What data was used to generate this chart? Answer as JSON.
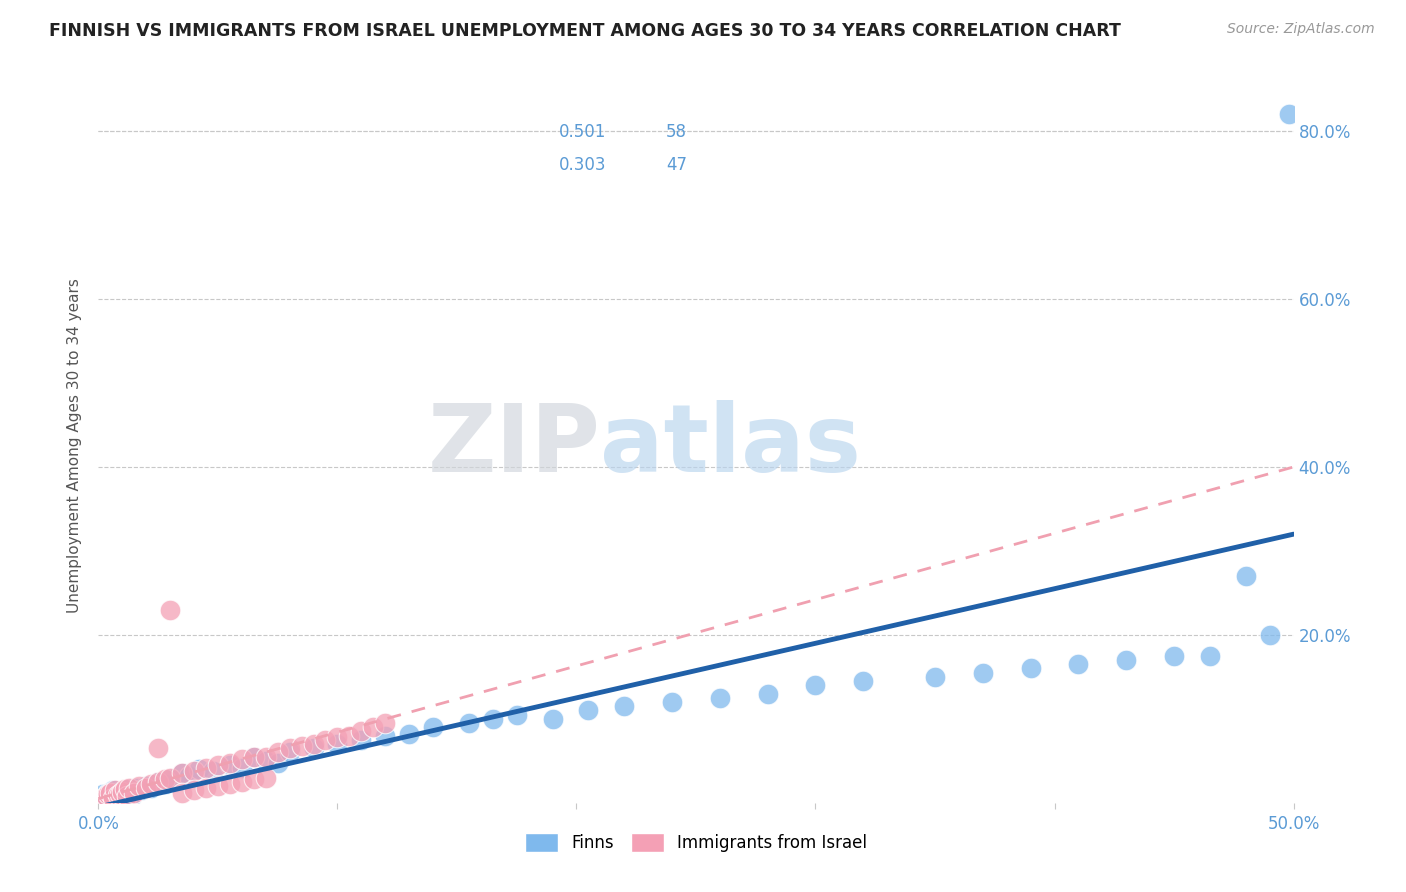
{
  "title": "FINNISH VS IMMIGRANTS FROM ISRAEL UNEMPLOYMENT AMONG AGES 30 TO 34 YEARS CORRELATION CHART",
  "source_text": "Source: ZipAtlas.com",
  "ylabel": "Unemployment Among Ages 30 to 34 years",
  "xlim": [
    0.0,
    0.5
  ],
  "ylim": [
    0.0,
    0.85
  ],
  "xtick_labels": [
    "0.0%",
    "",
    "",
    "",
    "",
    "50.0%"
  ],
  "xtick_vals": [
    0.0,
    0.1,
    0.2,
    0.3,
    0.4,
    0.5
  ],
  "ytick_labels": [
    "20.0%",
    "40.0%",
    "60.0%",
    "80.0%"
  ],
  "ytick_vals": [
    0.2,
    0.4,
    0.6,
    0.8
  ],
  "legend_r1": "0.501",
  "legend_n1": "58",
  "legend_r2": "0.303",
  "legend_n2": "47",
  "blue_color": "#7fb9ed",
  "pink_color": "#f4a0b5",
  "trend_blue": "#2060a8",
  "trend_pink": "#f0a0b0",
  "label_color": "#5b9bd5",
  "watermark_zip": "ZIP",
  "watermark_atlas": "atlas",
  "grid_color": "#c8c8c8",
  "bg_color": "#ffffff",
  "title_color": "#222222",
  "axis_label_color": "#5b9bd5",
  "finns_x": [
    0.002,
    0.003,
    0.004,
    0.005,
    0.006,
    0.007,
    0.008,
    0.009,
    0.01,
    0.011,
    0.012,
    0.013,
    0.014,
    0.015,
    0.016,
    0.018,
    0.02,
    0.022,
    0.025,
    0.028,
    0.03,
    0.035,
    0.038,
    0.042,
    0.048,
    0.055,
    0.06,
    0.065,
    0.07,
    0.075,
    0.08,
    0.09,
    0.1,
    0.11,
    0.12,
    0.13,
    0.14,
    0.155,
    0.165,
    0.175,
    0.19,
    0.205,
    0.22,
    0.24,
    0.26,
    0.28,
    0.3,
    0.32,
    0.35,
    0.37,
    0.39,
    0.41,
    0.43,
    0.45,
    0.465,
    0.48,
    0.49,
    0.498
  ],
  "finns_y": [
    0.01,
    0.008,
    0.012,
    0.006,
    0.015,
    0.009,
    0.011,
    0.013,
    0.007,
    0.014,
    0.01,
    0.016,
    0.008,
    0.012,
    0.018,
    0.015,
    0.02,
    0.018,
    0.025,
    0.022,
    0.028,
    0.035,
    0.032,
    0.04,
    0.038,
    0.045,
    0.042,
    0.055,
    0.05,
    0.048,
    0.06,
    0.065,
    0.07,
    0.075,
    0.08,
    0.082,
    0.09,
    0.095,
    0.1,
    0.105,
    0.1,
    0.11,
    0.115,
    0.12,
    0.125,
    0.13,
    0.14,
    0.145,
    0.15,
    0.155,
    0.16,
    0.165,
    0.17,
    0.175,
    0.175,
    0.27,
    0.2,
    0.82
  ],
  "israel_x": [
    0.002,
    0.003,
    0.004,
    0.005,
    0.006,
    0.007,
    0.008,
    0.009,
    0.01,
    0.011,
    0.012,
    0.013,
    0.015,
    0.017,
    0.02,
    0.022,
    0.025,
    0.028,
    0.03,
    0.035,
    0.04,
    0.045,
    0.05,
    0.055,
    0.06,
    0.065,
    0.07,
    0.075,
    0.08,
    0.085,
    0.09,
    0.095,
    0.1,
    0.105,
    0.11,
    0.115,
    0.12,
    0.025,
    0.03,
    0.035,
    0.04,
    0.045,
    0.05,
    0.055,
    0.06,
    0.065,
    0.07
  ],
  "israel_y": [
    0.005,
    0.008,
    0.01,
    0.012,
    0.006,
    0.015,
    0.009,
    0.011,
    0.013,
    0.016,
    0.008,
    0.018,
    0.012,
    0.02,
    0.018,
    0.022,
    0.025,
    0.028,
    0.03,
    0.035,
    0.038,
    0.042,
    0.045,
    0.048,
    0.052,
    0.055,
    0.055,
    0.06,
    0.065,
    0.068,
    0.07,
    0.075,
    0.078,
    0.08,
    0.085,
    0.09,
    0.095,
    0.065,
    0.23,
    0.012,
    0.015,
    0.018,
    0.02,
    0.022,
    0.025,
    0.028,
    0.03
  ],
  "finns_trend_x0": 0.0,
  "finns_trend_y0": -0.005,
  "finns_trend_x1": 0.5,
  "finns_trend_y1": 0.32,
  "israel_trend_x0": 0.0,
  "israel_trend_y0": 0.005,
  "israel_trend_x1": 0.5,
  "israel_trend_y1": 0.4
}
